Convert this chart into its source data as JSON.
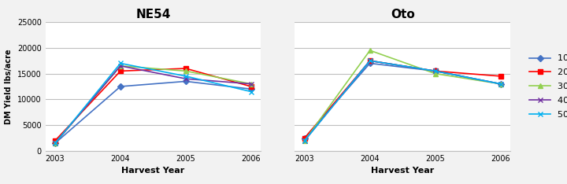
{
  "years": [
    2003,
    2004,
    2005,
    2006
  ],
  "ne54": {
    "10 PLS": [
      1500,
      12500,
      13500,
      12000
    ],
    "20 PLS": [
      2000,
      15500,
      16000,
      12500
    ],
    "30 PLS": [
      1500,
      16500,
      15500,
      13000
    ],
    "40 PLS": [
      1500,
      16500,
      14000,
      13000
    ],
    "50 PLS": [
      1500,
      17000,
      14500,
      11500
    ]
  },
  "oto": {
    "10 PLS": [
      2500,
      17000,
      15500,
      13000
    ],
    "20 PLS": [
      2500,
      17500,
      15500,
      14500
    ],
    "30 PLS": [
      2000,
      19500,
      15000,
      13000
    ],
    "40 PLS": [
      2000,
      17500,
      15500,
      13000
    ],
    "50 PLS": [
      2000,
      17500,
      15500,
      13000
    ]
  },
  "series_styles": {
    "10 PLS": {
      "color": "#4472C4",
      "marker": "D",
      "markersize": 4
    },
    "20 PLS": {
      "color": "#FF0000",
      "marker": "s",
      "markersize": 4
    },
    "30 PLS": {
      "color": "#92D050",
      "marker": "^",
      "markersize": 5
    },
    "40 PLS": {
      "color": "#7030A0",
      "marker": "x",
      "markersize": 5
    },
    "50 PLS": {
      "color": "#00B0F0",
      "marker": "x",
      "markersize": 5
    }
  },
  "ylim": [
    0,
    25000
  ],
  "yticks": [
    0,
    5000,
    10000,
    15000,
    20000,
    25000
  ],
  "title_ne54": "NE54",
  "title_oto": "Oto",
  "xlabel": "Harvest Year",
  "ylabel": "DM Yield lbs/acre",
  "bg_color": "#F2F2F2",
  "plot_bg_color": "#FFFFFF",
  "grid_color": "#BFBFBF"
}
